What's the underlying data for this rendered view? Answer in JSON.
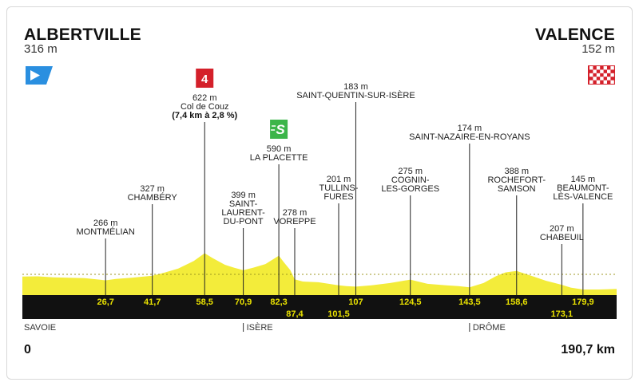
{
  "start": {
    "city": "ALBERTVILLE",
    "altitude": "316 m"
  },
  "finish": {
    "city": "VALENCE",
    "altitude": "152 m"
  },
  "distance_start": "0",
  "distance_end": "190,7 km",
  "colors": {
    "profile": "#f3ec3a",
    "band": "#111111",
    "km_text": "#e9e100",
    "start_flag": "#2a8fe0",
    "finish_flag": "#d4202a",
    "climb_cat4": "#d4202a",
    "sprint": "#3cb54a"
  },
  "chart_data": {
    "type": "area",
    "xlabel": "",
    "ylabel": "",
    "xlim": [
      0,
      190.7
    ],
    "profile": [
      [
        0,
        316
      ],
      [
        5,
        318
      ],
      [
        10,
        305
      ],
      [
        15,
        300
      ],
      [
        20,
        295
      ],
      [
        26.7,
        266
      ],
      [
        30,
        285
      ],
      [
        35,
        300
      ],
      [
        41.7,
        327
      ],
      [
        45,
        360
      ],
      [
        50,
        420
      ],
      [
        55,
        520
      ],
      [
        58.5,
        622
      ],
      [
        61,
        560
      ],
      [
        65,
        470
      ],
      [
        68,
        430
      ],
      [
        70.9,
        399
      ],
      [
        74,
        430
      ],
      [
        78,
        480
      ],
      [
        82.3,
        590
      ],
      [
        84,
        500
      ],
      [
        86,
        400
      ],
      [
        87.4,
        278
      ],
      [
        90,
        250
      ],
      [
        95,
        240
      ],
      [
        101.5,
        201
      ],
      [
        104,
        190
      ],
      [
        107,
        183
      ],
      [
        112,
        200
      ],
      [
        118,
        230
      ],
      [
        124.5,
        275
      ],
      [
        130,
        220
      ],
      [
        136,
        200
      ],
      [
        140,
        190
      ],
      [
        143.5,
        174
      ],
      [
        148,
        230
      ],
      [
        152,
        320
      ],
      [
        155,
        370
      ],
      [
        158.6,
        388
      ],
      [
        163,
        330
      ],
      [
        168,
        260
      ],
      [
        173.1,
        207
      ],
      [
        176,
        170
      ],
      [
        179.9,
        145
      ],
      [
        185,
        145
      ],
      [
        190.7,
        152
      ]
    ],
    "km_markers": [
      "26,7",
      "41,7",
      "58,5",
      "70,9",
      "82,3",
      "87,4",
      "101,5",
      "107",
      "124,5",
      "143,5",
      "158,6",
      "173,1",
      "179,9"
    ],
    "waypoints": [
      {
        "km": 26.7,
        "alt": "266 m",
        "lines": [
          "MONTMÉLIAN"
        ]
      },
      {
        "km": 41.7,
        "alt": "327 m",
        "lines": [
          "CHAMBÉRY"
        ]
      },
      {
        "km": 58.5,
        "alt": "622 m",
        "lines": [
          "Col de Couz"
        ],
        "extra": "(7,4 km à 2,8 %)",
        "badge": "4"
      },
      {
        "km": 70.9,
        "alt": "399 m",
        "lines": [
          "SAINT-",
          "LAURENT-",
          "DU-PONT"
        ]
      },
      {
        "km": 82.3,
        "alt": "590 m",
        "lines": [
          "LA PLACETTE"
        ],
        "badge": "S"
      },
      {
        "km": 87.4,
        "alt": "278 m",
        "lines": [
          "VOREPPE"
        ]
      },
      {
        "km": 101.5,
        "alt": "201 m",
        "lines": [
          "TULLINS-",
          "FURES"
        ]
      },
      {
        "km": 107,
        "alt": "183 m",
        "lines": [
          "SAINT-QUENTIN-SUR-ISÈRE"
        ]
      },
      {
        "km": 124.5,
        "alt": "275 m",
        "lines": [
          "COGNIN-",
          "LES-GORGES"
        ]
      },
      {
        "km": 143.5,
        "alt": "174 m",
        "lines": [
          "SAINT-NAZAIRE-EN-ROYANS"
        ]
      },
      {
        "km": 158.6,
        "alt": "388 m",
        "lines": [
          "ROCHEFORT-",
          "SAMSON"
        ]
      },
      {
        "km": 173.1,
        "alt": "207 m",
        "lines": [
          "CHABEUIL"
        ]
      },
      {
        "km": 179.9,
        "alt": "145 m",
        "lines": [
          "BEAUMONT-",
          "LÈS-VALENCE"
        ]
      }
    ],
    "regions": [
      {
        "km": 0,
        "label": "SAVOIE"
      },
      {
        "km": 70.9,
        "label": "ISÈRE"
      },
      {
        "km": 143.5,
        "label": "DRÔME"
      }
    ]
  }
}
